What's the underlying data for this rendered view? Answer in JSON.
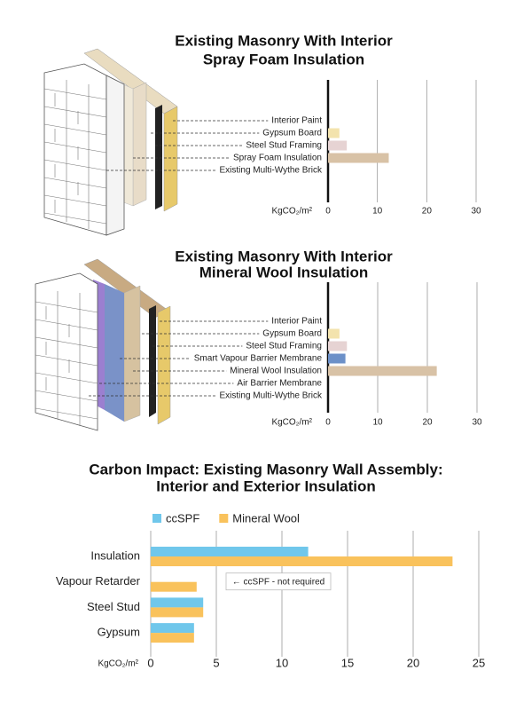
{
  "chart_data": [
    {
      "type": "hbar",
      "title": [
        "Existing Masonry With Interior",
        "Spray Foam Insulation"
      ],
      "categories": [
        "Interior Paint",
        "Gypsum Board",
        "Steel Stud Framing",
        "Spray Foam Insulation",
        "Existing Multi-Wythe Brick"
      ],
      "values": [
        0,
        2.3,
        3.8,
        12.3,
        0
      ],
      "colors": [
        "#e8e0d0",
        "#f3e3ad",
        "#e6d3d3",
        "#d8c2a6",
        "#cccccc"
      ],
      "x_label": "KgCO₂/m²",
      "xlim": [
        0,
        30
      ],
      "xticks": [
        0,
        10,
        20,
        30
      ],
      "grid": true
    },
    {
      "type": "hbar",
      "title": [
        "Existing Masonry With Interior",
        "Mineral Wool Insulation"
      ],
      "categories": [
        "Interior Paint",
        "Gypsum Board",
        "Steel Stud Framing",
        "Smart Vapour Barrier Membrane",
        "Mineral Wool Insulation",
        "Air Barrier Membrane",
        "Existing Multi-Wythe Brick"
      ],
      "values": [
        0,
        2.3,
        3.8,
        3.5,
        21.9,
        0,
        0
      ],
      "colors": [
        "#e8e0d0",
        "#f3e3ad",
        "#e6d3d3",
        "#6c90c8",
        "#d8c2a6",
        "#b9a0d8",
        "#cccccc"
      ],
      "x_label": "KgCO₂/m²",
      "xlim": [
        0,
        30
      ],
      "xticks": [
        0,
        10,
        20,
        30
      ],
      "grid": true
    },
    {
      "type": "grouped-hbar",
      "title": [
        "Carbon Impact: Existing Masonry Wall Assembly:",
        "Interior and Exterior Insulation"
      ],
      "categories": [
        "Insulation",
        "Vapour Retarder",
        "Steel Stud",
        "Gypsum"
      ],
      "series": [
        {
          "name": "ccSPF",
          "color": "#70c7eb",
          "values": [
            12,
            null,
            4,
            3.3
          ]
        },
        {
          "name": "Mineral Wool",
          "color": "#f9c25c",
          "values": [
            23,
            3.5,
            4,
            3.3
          ]
        }
      ],
      "annotation": "← ccSPF - not required",
      "x_label": "KgCO₂/m²",
      "xlim": [
        0,
        25
      ],
      "xticks": [
        0,
        5,
        10,
        15,
        20,
        25
      ],
      "grid": true,
      "legend": "top-left"
    }
  ]
}
